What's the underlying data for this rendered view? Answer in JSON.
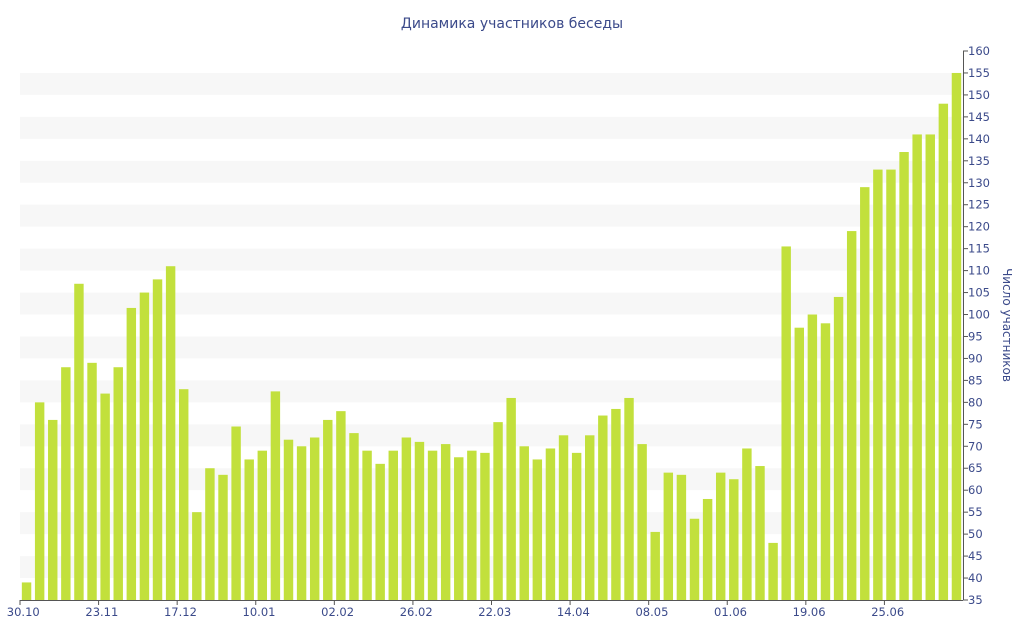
{
  "chart_data": {
    "type": "bar",
    "title": "Динамика участников беседы",
    "ylabel": "Число участников",
    "xlabel": "",
    "ylim": [
      35,
      160
    ],
    "y_ticks": [
      35,
      40,
      45,
      50,
      55,
      60,
      65,
      70,
      75,
      80,
      85,
      90,
      95,
      100,
      105,
      110,
      115,
      120,
      125,
      130,
      135,
      140,
      145,
      150,
      155,
      160
    ],
    "y_axis_side": "right",
    "grid": "alternating horizontal bands",
    "colors": {
      "bar": "#c2e03c",
      "band": "#f7f7f7",
      "text": "#3b4a8a",
      "axis": "#555555"
    },
    "x_tick_labels": [
      {
        "index": 0,
        "label": "30.10"
      },
      {
        "index": 6,
        "label": "23.11"
      },
      {
        "index": 12,
        "label": "17.12"
      },
      {
        "index": 18,
        "label": "10.01"
      },
      {
        "index": 24,
        "label": "02.02"
      },
      {
        "index": 30,
        "label": "26.02"
      },
      {
        "index": 36,
        "label": "22.03"
      },
      {
        "index": 42,
        "label": "14.04"
      },
      {
        "index": 48,
        "label": "08.05"
      },
      {
        "index": 54,
        "label": "01.06"
      },
      {
        "index": 60,
        "label": "19.06"
      },
      {
        "index": 66,
        "label": "25.06"
      }
    ],
    "values": [
      39,
      80,
      76,
      88,
      107,
      89,
      82,
      88,
      101.5,
      105,
      108,
      111,
      83,
      55,
      65,
      63.5,
      74.5,
      67,
      69,
      82.5,
      71.5,
      70,
      72,
      76,
      78,
      73,
      69,
      66,
      69,
      72,
      71,
      69,
      70.5,
      67.5,
      69,
      68.5,
      75.5,
      81,
      70,
      67,
      69.5,
      72.5,
      68.5,
      72.5,
      77,
      78.5,
      81,
      70.5,
      50.5,
      64,
      63.5,
      53.5,
      58,
      64,
      62.5,
      69.5,
      65.5,
      48,
      115.5,
      97,
      100,
      98,
      104,
      119,
      129,
      133,
      133,
      137,
      141,
      141,
      148,
      155
    ]
  }
}
